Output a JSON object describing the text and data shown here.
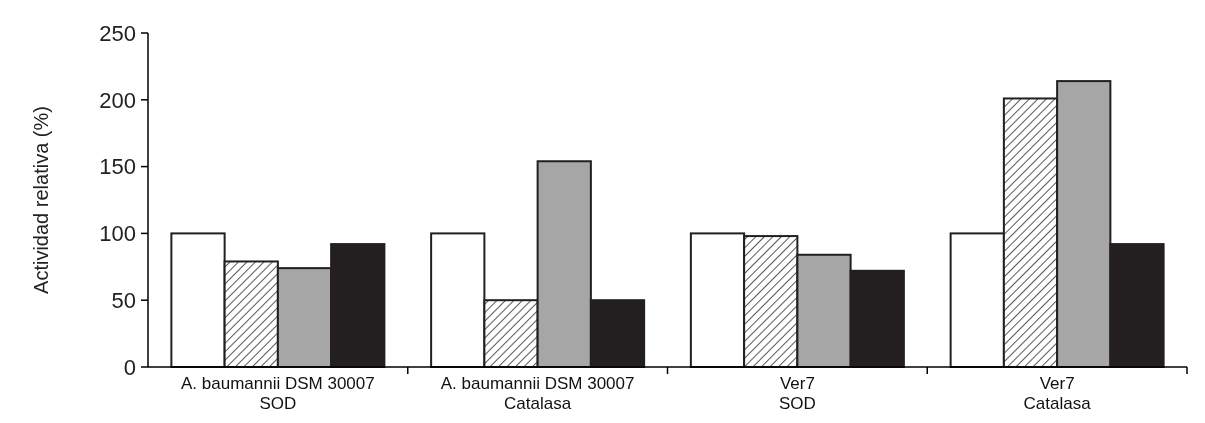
{
  "chart_data": {
    "type": "bar",
    "ylabel": "Actividad relativa (%)",
    "categories": [
      "A. baumannii DSM 30007\nSOD",
      "A. baumannii DSM 30007\nCatalasa",
      "Ver7\nSOD",
      "Ver7\nCatalasa"
    ],
    "series": [
      {
        "color": "#ffffff",
        "values": [
          100,
          100,
          100,
          100
        ]
      },
      {
        "color": "#231f20",
        "values": [
          79,
          50,
          98,
          201
        ]
      },
      {
        "color": "#a6a6a6",
        "values": [
          74,
          154,
          84,
          214
        ]
      },
      {
        "color": "#231f20",
        "values": [
          92,
          50,
          72,
          92
        ]
      }
    ],
    "ylim": [
      0,
      250
    ],
    "yticks": [
      0,
      50,
      100,
      150,
      200,
      250
    ],
    "grid": false
  }
}
